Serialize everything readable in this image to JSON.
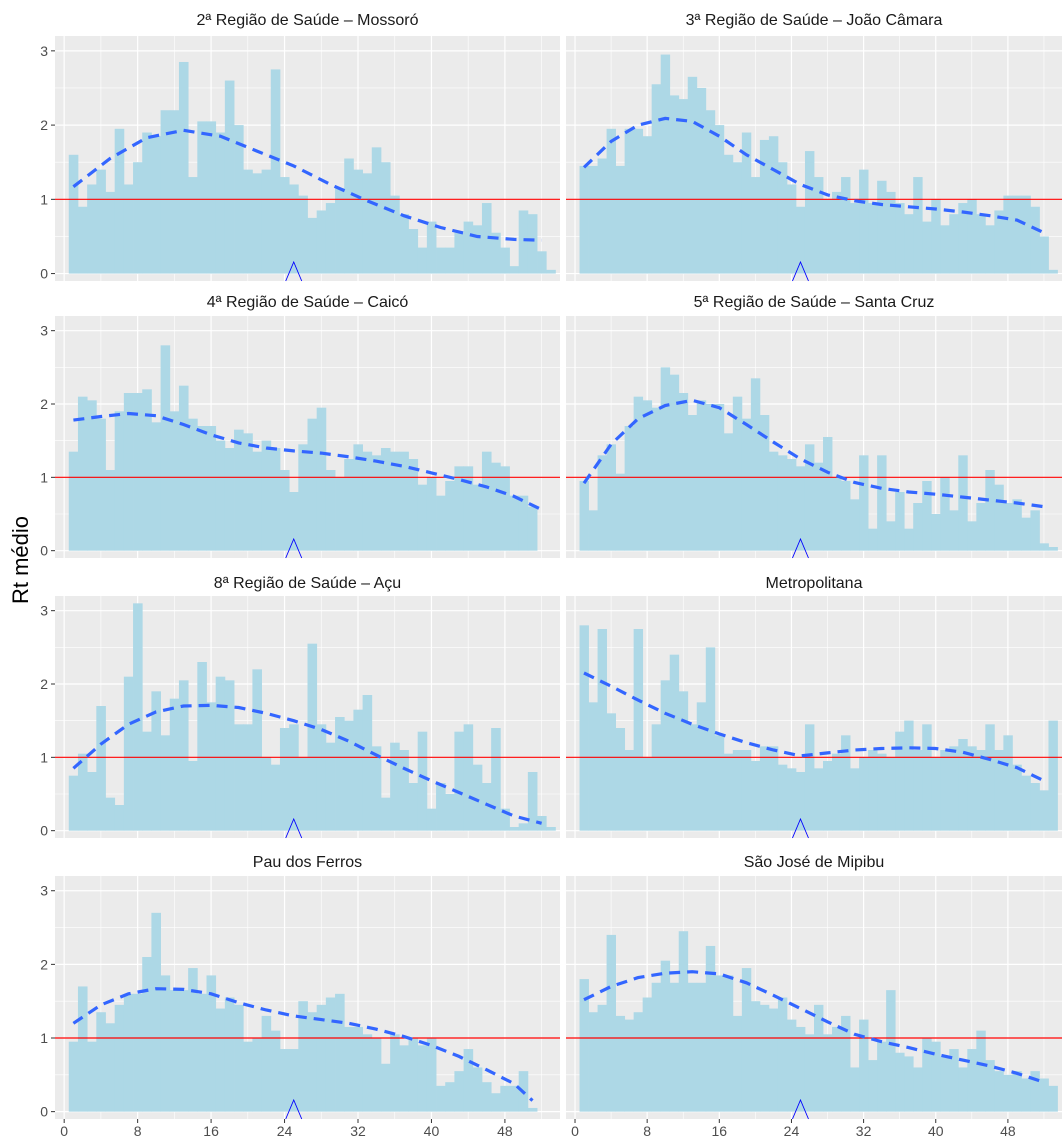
{
  "chart_data": {
    "type": "bar",
    "ylabel": "Rt médio",
    "xlabel": "",
    "x_ticks": [
      0,
      8,
      16,
      24,
      32,
      40,
      48
    ],
    "y_ticks": [
      0,
      1,
      2,
      3
    ],
    "xlim": [
      -1,
      54
    ],
    "ylim": [
      -0.1,
      3.2
    ],
    "reference_line": 1,
    "marker_x": 25,
    "colors": {
      "bars": "#ADD8E6",
      "panel_bg": "#EBEBEB",
      "grid": "#FFFFFF",
      "reference_line": "#FF0000",
      "trend": "#3366FF",
      "marker": "#0000FF"
    },
    "panels": [
      {
        "title": "2ª Região de Saúde – Mossoró",
        "values": [
          1.6,
          0.9,
          1.2,
          1.4,
          1.1,
          1.95,
          1.2,
          1.5,
          1.9,
          1.85,
          2.2,
          2.2,
          2.85,
          1.3,
          2.05,
          2.05,
          1.9,
          2.6,
          2.0,
          1.4,
          1.35,
          1.4,
          2.75,
          1.3,
          1.2,
          1.05,
          0.75,
          0.85,
          0.95,
          1.15,
          1.55,
          1.4,
          1.35,
          1.7,
          1.5,
          1.05,
          0.8,
          0.6,
          0.35,
          0.7,
          0.35,
          0.35,
          0.55,
          0.7,
          0.65,
          0.95,
          0.55,
          0.35,
          0.1,
          0.85,
          0.8,
          0.3,
          0.05
        ],
        "trend": [
          [
            1,
            1.17
          ],
          [
            5,
            1.55
          ],
          [
            9,
            1.83
          ],
          [
            13,
            1.93
          ],
          [
            17,
            1.85
          ],
          [
            21,
            1.65
          ],
          [
            25,
            1.45
          ],
          [
            29,
            1.2
          ],
          [
            33,
            0.98
          ],
          [
            37,
            0.78
          ],
          [
            41,
            0.62
          ],
          [
            45,
            0.5
          ],
          [
            49,
            0.46
          ],
          [
            52,
            0.45
          ]
        ]
      },
      {
        "title": "3ª Região de Saúde – João Câmara",
        "values": [
          1.45,
          1.45,
          1.55,
          1.95,
          1.45,
          1.95,
          1.95,
          1.85,
          2.55,
          2.95,
          2.4,
          2.35,
          2.65,
          2.5,
          2.2,
          2.0,
          1.6,
          1.5,
          1.9,
          1.3,
          1.8,
          1.85,
          1.5,
          1.2,
          0.9,
          1.65,
          1.3,
          1.0,
          1.1,
          1.3,
          0.95,
          1.4,
          0.95,
          1.25,
          1.1,
          0.95,
          0.8,
          1.3,
          0.7,
          1.0,
          0.65,
          0.8,
          0.95,
          1.0,
          0.8,
          0.65,
          0.85,
          1.05,
          1.05,
          1.05,
          0.9,
          0.5,
          0.05
        ],
        "trend": [
          [
            1,
            1.43
          ],
          [
            4,
            1.78
          ],
          [
            7,
            2.0
          ],
          [
            10,
            2.09
          ],
          [
            13,
            2.05
          ],
          [
            16,
            1.85
          ],
          [
            19,
            1.6
          ],
          [
            22,
            1.4
          ],
          [
            25,
            1.2
          ],
          [
            28,
            1.06
          ],
          [
            31,
            0.98
          ],
          [
            34,
            0.93
          ],
          [
            37,
            0.9
          ],
          [
            40,
            0.87
          ],
          [
            43,
            0.83
          ],
          [
            46,
            0.78
          ],
          [
            49,
            0.72
          ],
          [
            52,
            0.55
          ]
        ]
      },
      {
        "title": "4ª Região de Saúde – Caicó",
        "values": [
          1.35,
          2.1,
          2.05,
          1.8,
          1.1,
          1.9,
          2.15,
          2.15,
          2.2,
          1.75,
          2.8,
          1.9,
          2.25,
          1.8,
          1.7,
          1.7,
          1.5,
          1.4,
          1.65,
          1.6,
          1.35,
          1.5,
          1.4,
          1.1,
          0.8,
          1.45,
          1.8,
          1.95,
          1.1,
          1.0,
          1.25,
          1.45,
          1.35,
          1.3,
          1.4,
          1.35,
          1.35,
          1.25,
          0.9,
          1.0,
          0.75,
          0.95,
          1.15,
          1.15,
          0.9,
          1.35,
          1.2,
          1.15,
          0.75,
          0.75,
          0.6,
          0.0,
          0.0
        ],
        "trend": [
          [
            1,
            1.78
          ],
          [
            4,
            1.83
          ],
          [
            7,
            1.87
          ],
          [
            10,
            1.84
          ],
          [
            13,
            1.72
          ],
          [
            16,
            1.58
          ],
          [
            19,
            1.47
          ],
          [
            22,
            1.4
          ],
          [
            25,
            1.36
          ],
          [
            28,
            1.33
          ],
          [
            31,
            1.28
          ],
          [
            34,
            1.22
          ],
          [
            37,
            1.15
          ],
          [
            40,
            1.06
          ],
          [
            43,
            0.97
          ],
          [
            46,
            0.87
          ],
          [
            49,
            0.74
          ],
          [
            52,
            0.56
          ]
        ]
      },
      {
        "title": "5ª Região de Saúde – Santa Cruz",
        "values": [
          0.95,
          0.55,
          1.3,
          1.45,
          1.05,
          1.7,
          2.1,
          2.05,
          1.95,
          2.5,
          2.4,
          2.15,
          1.85,
          2.05,
          2.0,
          2.0,
          1.6,
          2.1,
          1.8,
          2.35,
          1.85,
          1.35,
          1.3,
          1.25,
          1.15,
          1.45,
          1.2,
          1.55,
          1.0,
          0.95,
          0.7,
          1.3,
          0.3,
          1.3,
          0.4,
          0.8,
          0.3,
          0.65,
          0.95,
          0.5,
          1.0,
          0.55,
          1.3,
          0.4,
          0.65,
          1.1,
          0.9,
          0.65,
          0.7,
          0.45,
          0.55,
          0.1,
          0.05
        ],
        "trend": [
          [
            1,
            0.92
          ],
          [
            4,
            1.45
          ],
          [
            7,
            1.8
          ],
          [
            10,
            1.98
          ],
          [
            13,
            2.05
          ],
          [
            16,
            1.95
          ],
          [
            19,
            1.72
          ],
          [
            22,
            1.48
          ],
          [
            25,
            1.25
          ],
          [
            28,
            1.07
          ],
          [
            31,
            0.93
          ],
          [
            34,
            0.85
          ],
          [
            37,
            0.8
          ],
          [
            40,
            0.77
          ],
          [
            43,
            0.73
          ],
          [
            46,
            0.69
          ],
          [
            49,
            0.65
          ],
          [
            52,
            0.6
          ]
        ]
      },
      {
        "title": "8ª Região de Saúde – Açu",
        "values": [
          0.75,
          1.05,
          0.8,
          1.7,
          0.45,
          0.35,
          2.1,
          3.1,
          1.35,
          1.9,
          1.3,
          1.8,
          2.05,
          0.95,
          2.3,
          1.75,
          2.1,
          2.05,
          1.45,
          1.45,
          2.2,
          1.0,
          0.9,
          1.4,
          1.45,
          1.0,
          2.55,
          1.45,
          1.2,
          1.55,
          1.5,
          1.65,
          1.85,
          1.15,
          0.45,
          1.2,
          1.1,
          0.65,
          1.35,
          0.3,
          0.65,
          0.5,
          1.35,
          1.45,
          0.9,
          0.65,
          1.4,
          0.3,
          0.05,
          0.1,
          0.8,
          0.2,
          0.05
        ],
        "trend": [
          [
            1,
            0.85
          ],
          [
            4,
            1.18
          ],
          [
            7,
            1.45
          ],
          [
            10,
            1.62
          ],
          [
            13,
            1.7
          ],
          [
            16,
            1.71
          ],
          [
            19,
            1.68
          ],
          [
            22,
            1.6
          ],
          [
            25,
            1.5
          ],
          [
            28,
            1.38
          ],
          [
            31,
            1.22
          ],
          [
            34,
            1.03
          ],
          [
            37,
            0.85
          ],
          [
            40,
            0.68
          ],
          [
            43,
            0.52
          ],
          [
            46,
            0.36
          ],
          [
            49,
            0.2
          ],
          [
            52,
            0.1
          ]
        ]
      },
      {
        "title": "Metropolitana",
        "values": [
          2.8,
          1.75,
          2.75,
          1.6,
          1.4,
          1.1,
          2.75,
          1.0,
          1.45,
          2.05,
          2.4,
          1.9,
          1.45,
          1.75,
          2.5,
          1.3,
          1.05,
          1.1,
          1.1,
          0.95,
          1.15,
          1.15,
          0.9,
          0.85,
          0.8,
          1.45,
          0.85,
          0.95,
          1.05,
          1.3,
          0.85,
          1.0,
          1.1,
          1.05,
          1.0,
          1.35,
          1.5,
          1.1,
          1.45,
          1.0,
          1.1,
          1.15,
          1.25,
          1.15,
          1.1,
          1.45,
          1.1,
          1.3,
          0.9,
          0.75,
          0.65,
          0.55,
          1.5
        ],
        "trend": [
          [
            1,
            2.15
          ],
          [
            4,
            1.97
          ],
          [
            7,
            1.78
          ],
          [
            10,
            1.6
          ],
          [
            13,
            1.45
          ],
          [
            16,
            1.32
          ],
          [
            19,
            1.2
          ],
          [
            22,
            1.1
          ],
          [
            25,
            1.02
          ],
          [
            28,
            1.06
          ],
          [
            31,
            1.1
          ],
          [
            34,
            1.12
          ],
          [
            37,
            1.13
          ],
          [
            40,
            1.12
          ],
          [
            43,
            1.07
          ],
          [
            46,
            0.97
          ],
          [
            49,
            0.86
          ],
          [
            52,
            0.68
          ]
        ]
      },
      {
        "title": "Pau dos Ferros",
        "values": [
          0.95,
          1.7,
          0.95,
          1.35,
          1.2,
          1.45,
          1.6,
          1.6,
          2.1,
          2.7,
          1.85,
          1.65,
          1.65,
          1.95,
          1.6,
          1.85,
          1.4,
          1.55,
          1.45,
          0.95,
          1.0,
          1.3,
          1.1,
          0.85,
          0.85,
          1.5,
          1.35,
          1.45,
          1.55,
          1.6,
          1.15,
          1.15,
          1.05,
          1.0,
          0.65,
          1.05,
          0.9,
          1.0,
          0.9,
          1.0,
          0.35,
          0.4,
          0.55,
          0.85,
          0.6,
          0.4,
          0.25,
          0.35,
          0.35,
          0.55,
          0.05,
          0.0,
          0.0
        ],
        "trend": [
          [
            1,
            1.2
          ],
          [
            4,
            1.45
          ],
          [
            7,
            1.6
          ],
          [
            10,
            1.67
          ],
          [
            13,
            1.66
          ],
          [
            16,
            1.6
          ],
          [
            19,
            1.48
          ],
          [
            22,
            1.38
          ],
          [
            25,
            1.3
          ],
          [
            28,
            1.25
          ],
          [
            31,
            1.2
          ],
          [
            34,
            1.12
          ],
          [
            37,
            1.02
          ],
          [
            40,
            0.9
          ],
          [
            43,
            0.75
          ],
          [
            46,
            0.57
          ],
          [
            49,
            0.38
          ],
          [
            51,
            0.15
          ]
        ]
      },
      {
        "title": "São José de Mipibu",
        "values": [
          1.8,
          1.35,
          1.45,
          2.4,
          1.3,
          1.25,
          1.35,
          1.55,
          1.75,
          2.05,
          1.75,
          2.45,
          1.75,
          1.75,
          2.25,
          1.85,
          1.85,
          1.3,
          1.95,
          1.5,
          1.45,
          1.4,
          1.55,
          1.25,
          1.15,
          1.05,
          1.45,
          1.05,
          1.15,
          1.3,
          0.6,
          1.25,
          0.7,
          0.95,
          1.65,
          0.8,
          0.75,
          0.6,
          1.0,
          0.95,
          0.75,
          0.85,
          0.6,
          0.85,
          1.1,
          0.7,
          0.55,
          0.5,
          0.55,
          0.45,
          0.55,
          0.45,
          0.35
        ],
        "trend": [
          [
            1,
            1.52
          ],
          [
            4,
            1.7
          ],
          [
            7,
            1.82
          ],
          [
            10,
            1.88
          ],
          [
            13,
            1.9
          ],
          [
            16,
            1.87
          ],
          [
            19,
            1.75
          ],
          [
            22,
            1.58
          ],
          [
            25,
            1.4
          ],
          [
            28,
            1.22
          ],
          [
            31,
            1.05
          ],
          [
            34,
            0.95
          ],
          [
            37,
            0.87
          ],
          [
            40,
            0.78
          ],
          [
            43,
            0.7
          ],
          [
            46,
            0.62
          ],
          [
            49,
            0.52
          ],
          [
            52,
            0.4
          ]
        ]
      }
    ]
  }
}
